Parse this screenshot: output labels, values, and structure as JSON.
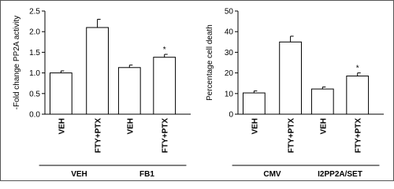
{
  "chart_data": [
    {
      "type": "bar",
      "y_label": "-Fold change PP2A activity",
      "categories": [
        "VEH",
        "FTY+PTX",
        "VEH",
        "FTY+PTX"
      ],
      "values": [
        1.0,
        2.1,
        1.13,
        1.38
      ],
      "errors": [
        0.05,
        0.2,
        0.06,
        0.07
      ],
      "groups": [
        "VEH",
        "FB1"
      ],
      "annotations": [
        "*"
      ],
      "ylim": [
        0,
        2.5
      ],
      "yticks": [
        {
          "value": 0,
          "label": "0.0"
        },
        0.5,
        {
          "value": 1,
          "label": "1.0"
        },
        1.5,
        {
          "value": 2,
          "label": "2.0"
        },
        2.5
      ],
      "color": "#ffffff"
    },
    {
      "type": "bar",
      "y_label": "Percentage cell death",
      "categories": [
        "VEH",
        "FTY+PTX",
        "VEH",
        "FTY+PTX"
      ],
      "values": [
        10.3,
        35,
        12.2,
        18.5
      ],
      "errors": [
        1,
        2.8,
        1,
        1.5
      ],
      "groups": [
        "CMV",
        "I2PP2A/SET"
      ],
      "annotations": [
        "*"
      ],
      "ylim": [
        0,
        50
      ],
      "yticks": [
        0,
        10,
        20,
        30,
        40,
        50
      ],
      "color": "#ffffff"
    }
  ]
}
